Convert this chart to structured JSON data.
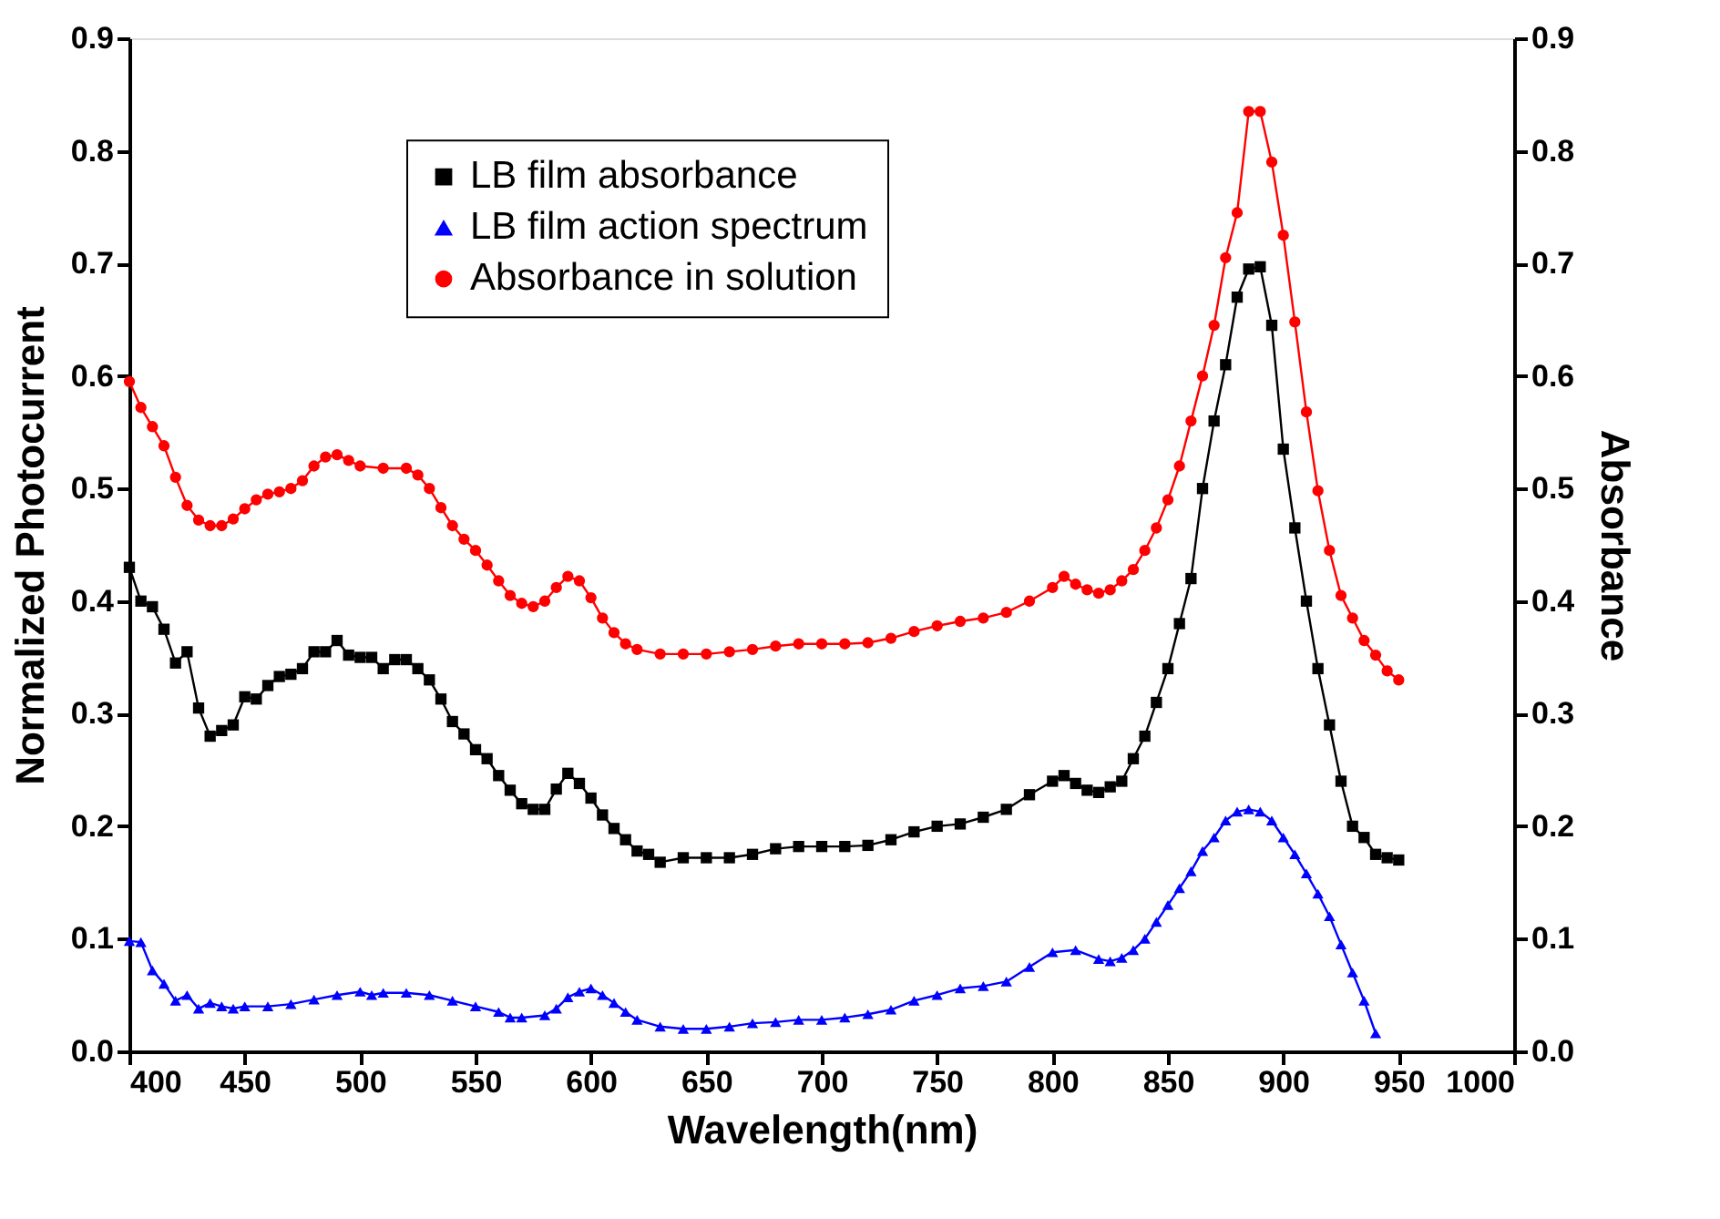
{
  "chart_data": {
    "type": "line",
    "xlabel": "Wavelength(nm)",
    "ylabel": "Normalized Photocurrent",
    "y2label": "Absorbance",
    "xlim": [
      400,
      1000
    ],
    "xticks": [
      400,
      450,
      500,
      550,
      600,
      650,
      700,
      750,
      800,
      850,
      900,
      950,
      1000
    ],
    "ylim": [
      0,
      0.9
    ],
    "yticks": [
      {
        "value": 0,
        "label": "0.0"
      },
      0.1,
      0.2,
      0.3,
      0.4,
      0.5,
      0.6,
      0.7,
      0.8,
      0.9
    ],
    "y2lim": [
      0,
      0.9
    ],
    "y2ticks": [
      {
        "value": 0,
        "label": "0.0"
      },
      0.1,
      0.2,
      0.3,
      0.4,
      0.5,
      0.6,
      0.7,
      0.8,
      0.9
    ],
    "legend": "top left",
    "grid": false,
    "line_style": "solid",
    "series": [
      {
        "name": "LB film absorbance",
        "color": "#000000",
        "marker": "square",
        "axis": "y2",
        "x": [
          400,
          405,
          410,
          415,
          420,
          425,
          430,
          435,
          440,
          445,
          450,
          455,
          460,
          465,
          470,
          475,
          480,
          485,
          490,
          495,
          500,
          505,
          510,
          515,
          520,
          525,
          530,
          535,
          540,
          545,
          550,
          555,
          560,
          565,
          570,
          575,
          580,
          585,
          590,
          595,
          600,
          605,
          610,
          615,
          620,
          625,
          630,
          640,
          650,
          660,
          670,
          680,
          690,
          700,
          710,
          720,
          730,
          740,
          750,
          760,
          770,
          780,
          790,
          800,
          805,
          810,
          815,
          820,
          825,
          830,
          835,
          840,
          845,
          850,
          855,
          860,
          865,
          870,
          875,
          880,
          885,
          890,
          895,
          900,
          905,
          910,
          915,
          920,
          925,
          930,
          935,
          940,
          945,
          950
        ],
        "values": [
          0.43,
          0.4,
          0.395,
          0.375,
          0.345,
          0.355,
          0.305,
          0.28,
          0.285,
          0.29,
          0.315,
          0.313,
          0.325,
          0.333,
          0.335,
          0.34,
          0.355,
          0.355,
          0.365,
          0.352,
          0.35,
          0.35,
          0.34,
          0.348,
          0.348,
          0.34,
          0.33,
          0.313,
          0.293,
          0.282,
          0.268,
          0.26,
          0.245,
          0.232,
          0.22,
          0.215,
          0.215,
          0.233,
          0.247,
          0.238,
          0.225,
          0.21,
          0.198,
          0.188,
          0.178,
          0.175,
          0.168,
          0.172,
          0.172,
          0.172,
          0.175,
          0.18,
          0.182,
          0.182,
          0.182,
          0.183,
          0.188,
          0.195,
          0.2,
          0.202,
          0.208,
          0.215,
          0.228,
          0.24,
          0.245,
          0.238,
          0.232,
          0.23,
          0.235,
          0.24,
          0.26,
          0.28,
          0.31,
          0.34,
          0.38,
          0.42,
          0.5,
          0.56,
          0.61,
          0.67,
          0.695,
          0.697,
          0.645,
          0.535,
          0.465,
          0.4,
          0.34,
          0.29,
          0.24,
          0.2,
          0.19,
          0.175,
          0.172,
          0.17
        ]
      },
      {
        "name": "LB film action spectrum",
        "color": "#0000ff",
        "marker": "triangle",
        "x": [
          400,
          405,
          410,
          415,
          420,
          425,
          430,
          435,
          440,
          445,
          450,
          460,
          470,
          480,
          490,
          500,
          505,
          510,
          520,
          530,
          540,
          550,
          560,
          565,
          570,
          580,
          585,
          590,
          595,
          600,
          605,
          610,
          615,
          620,
          630,
          640,
          650,
          660,
          670,
          680,
          690,
          700,
          710,
          720,
          730,
          740,
          750,
          760,
          770,
          780,
          790,
          800,
          810,
          820,
          825,
          830,
          835,
          840,
          845,
          850,
          855,
          860,
          865,
          870,
          875,
          880,
          885,
          890,
          895,
          900,
          905,
          910,
          915,
          920,
          925,
          930,
          935,
          940
        ],
        "values": [
          0.098,
          0.097,
          0.072,
          0.06,
          0.045,
          0.05,
          0.038,
          0.043,
          0.04,
          0.038,
          0.04,
          0.04,
          0.042,
          0.046,
          0.05,
          0.053,
          0.05,
          0.052,
          0.052,
          0.05,
          0.045,
          0.04,
          0.035,
          0.03,
          0.03,
          0.032,
          0.038,
          0.048,
          0.053,
          0.056,
          0.05,
          0.043,
          0.035,
          0.028,
          0.022,
          0.02,
          0.02,
          0.022,
          0.025,
          0.026,
          0.028,
          0.028,
          0.03,
          0.033,
          0.037,
          0.045,
          0.05,
          0.056,
          0.058,
          0.062,
          0.075,
          0.088,
          0.09,
          0.082,
          0.08,
          0.083,
          0.09,
          0.1,
          0.115,
          0.13,
          0.145,
          0.16,
          0.178,
          0.19,
          0.205,
          0.213,
          0.215,
          0.213,
          0.205,
          0.19,
          0.175,
          0.158,
          0.14,
          0.12,
          0.095,
          0.07,
          0.045,
          0.016
        ]
      },
      {
        "name": "Absorbance in solution",
        "color": "#ff0000",
        "marker": "circle",
        "axis": "y2",
        "x": [
          400,
          405,
          410,
          415,
          420,
          425,
          430,
          435,
          440,
          445,
          450,
          455,
          460,
          465,
          470,
          475,
          480,
          485,
          490,
          495,
          500,
          510,
          520,
          525,
          530,
          535,
          540,
          545,
          550,
          555,
          560,
          565,
          570,
          575,
          580,
          585,
          590,
          595,
          600,
          605,
          610,
          615,
          620,
          630,
          640,
          650,
          660,
          670,
          680,
          690,
          700,
          710,
          720,
          730,
          740,
          750,
          760,
          770,
          780,
          790,
          800,
          805,
          810,
          815,
          820,
          825,
          830,
          835,
          840,
          845,
          850,
          855,
          860,
          865,
          870,
          875,
          880,
          885,
          890,
          895,
          900,
          905,
          910,
          915,
          920,
          925,
          930,
          935,
          940,
          945,
          950
        ],
        "values": [
          0.595,
          0.572,
          0.555,
          0.538,
          0.51,
          0.485,
          0.472,
          0.467,
          0.467,
          0.473,
          0.482,
          0.49,
          0.495,
          0.497,
          0.5,
          0.507,
          0.52,
          0.528,
          0.53,
          0.525,
          0.52,
          0.518,
          0.518,
          0.512,
          0.5,
          0.483,
          0.467,
          0.455,
          0.445,
          0.432,
          0.418,
          0.405,
          0.398,
          0.395,
          0.4,
          0.412,
          0.422,
          0.418,
          0.403,
          0.385,
          0.372,
          0.362,
          0.357,
          0.353,
          0.353,
          0.353,
          0.355,
          0.357,
          0.36,
          0.362,
          0.362,
          0.362,
          0.363,
          0.367,
          0.373,
          0.378,
          0.382,
          0.385,
          0.39,
          0.4,
          0.412,
          0.422,
          0.415,
          0.41,
          0.407,
          0.41,
          0.418,
          0.428,
          0.445,
          0.465,
          0.49,
          0.52,
          0.56,
          0.6,
          0.645,
          0.705,
          0.745,
          0.835,
          0.835,
          0.79,
          0.725,
          0.648,
          0.568,
          0.498,
          0.445,
          0.405,
          0.385,
          0.365,
          0.352,
          0.338,
          0.33
        ]
      }
    ]
  }
}
